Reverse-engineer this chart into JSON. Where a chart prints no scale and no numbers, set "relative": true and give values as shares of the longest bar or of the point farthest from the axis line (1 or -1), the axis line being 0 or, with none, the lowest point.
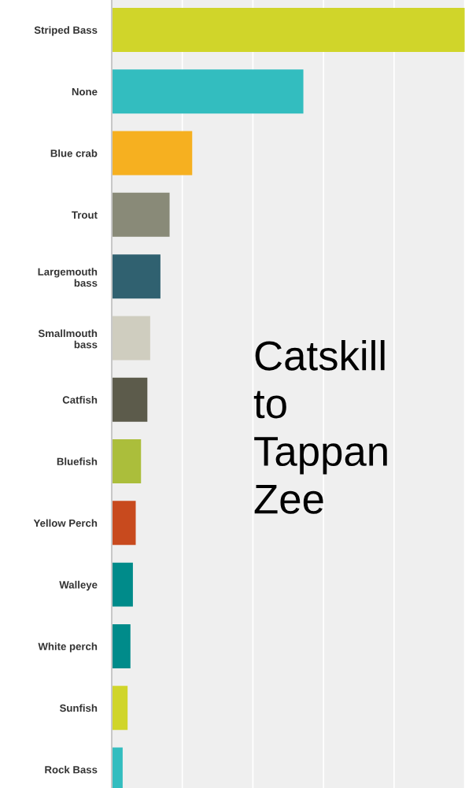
{
  "chart_data": {
    "type": "bar",
    "orientation": "horizontal",
    "relative": true,
    "grid": "x",
    "categories": [
      "Striped Bass",
      "None",
      "Blue crab",
      "Trout",
      "Largemouth\nbass",
      "Smallmouth\nbass",
      "Catfish",
      "Bluefish",
      "Yellow Perch",
      "Walleye",
      "White perch",
      "Sunfish",
      "Rock Bass"
    ],
    "values": [
      1,
      0.543,
      0.228,
      0.164,
      0.138,
      0.109,
      0.101,
      0.083,
      0.068,
      0.06,
      0.053,
      0.045,
      0.031
    ],
    "colors": [
      "#d0d52a",
      "#33bdbf",
      "#f6b020",
      "#898a78",
      "#306170",
      "#cfcdbf",
      "#5c5b4b",
      "#abbe3b",
      "#c84a1e",
      "#008b8a",
      "#008b8a",
      "#d0d52a",
      "#33bdbf"
    ],
    "annotations": [
      "Catskill\nto\nTappan\nZee"
    ]
  }
}
